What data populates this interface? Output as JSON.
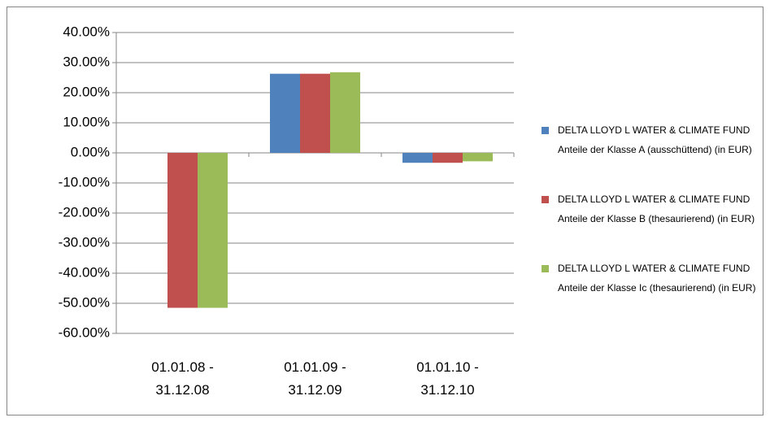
{
  "chart_data": {
    "type": "bar",
    "categories": [
      "01.01.08 -\n31.12.08",
      "01.01.09 -\n31.12.09",
      "01.01.10 -\n31.12.10"
    ],
    "series": [
      {
        "name": "DELTA LLOYD L WATER & CLIMATE FUND Anteile der Klasse A (ausschüttend) (in EUR)",
        "color": "#4f81bd",
        "values": [
          null,
          26.3,
          -3.3
        ]
      },
      {
        "name": "DELTA LLOYD L WATER & CLIMATE FUND Anteile der Klasse B (thesaurierend) (in EUR)",
        "color": "#c0504d",
        "values": [
          -51.5,
          26.3,
          -3.3
        ]
      },
      {
        "name": "DELTA LLOYD L WATER & CLIMATE FUND Anteile der Klasse Ic (thesaurierend) (in EUR)",
        "color": "#9bbb59",
        "values": [
          -51.5,
          26.8,
          -2.8
        ]
      }
    ],
    "ylim": [
      -60,
      40
    ],
    "yticks": [
      {
        "value": 40,
        "label": "40.00%"
      },
      {
        "value": 30,
        "label": "30.00%"
      },
      {
        "value": 20,
        "label": "20.00%"
      },
      {
        "value": 10,
        "label": "10.00%"
      },
      {
        "value": 0,
        "label": "0.00%"
      },
      {
        "value": -10,
        "label": "-10.00%"
      },
      {
        "value": -20,
        "label": "-20.00%"
      },
      {
        "value": -30,
        "label": "-30.00%"
      },
      {
        "value": -40,
        "label": "-40.00%"
      },
      {
        "value": -50,
        "label": "-50.00%"
      },
      {
        "value": -60,
        "label": "-60.00%"
      }
    ],
    "grid": true,
    "legend": "right"
  }
}
